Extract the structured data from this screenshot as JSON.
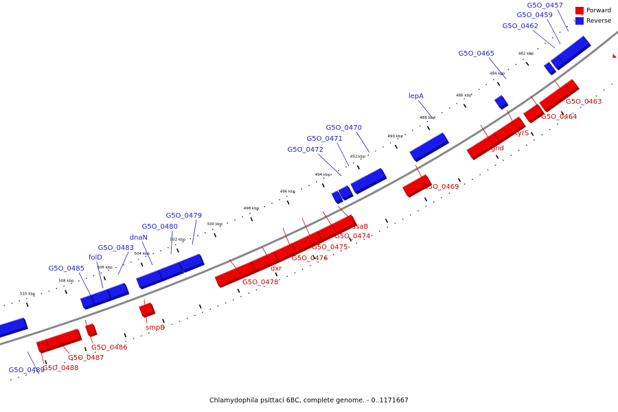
{
  "caption": "Chlamydophila psittaci 6BC, complete genome. - 0..1171667",
  "colors": {
    "forward": "#ee0000",
    "reverse": "#1a1aee",
    "forward_label": "#cc0000",
    "reverse_label": "#1a1acc",
    "backbone": "#888888"
  },
  "legend": {
    "forward": "Forward",
    "reverse": "Reverse"
  },
  "ticks": [
    "482 kbp",
    "484 kbp",
    "486 kbp",
    "488 kbp",
    "490 kbp",
    "492 kbp",
    "494 kbp",
    "496 kbp",
    "498 kbp",
    "500 kbp",
    "502 kbp",
    "504 kbp",
    "506 kbp",
    "508 kbp",
    "510 kbp"
  ],
  "genes": [
    {
      "name": "G5O_0457",
      "strand": "reverse"
    },
    {
      "name": "G5O_0459",
      "strand": "reverse"
    },
    {
      "name": "G5O_0462",
      "strand": "reverse"
    },
    {
      "name": "G5O_0465",
      "strand": "reverse"
    },
    {
      "name": "lepA",
      "strand": "reverse"
    },
    {
      "name": "G5O_0470",
      "strand": "reverse"
    },
    {
      "name": "G5O_0471",
      "strand": "reverse"
    },
    {
      "name": "G5O_0472",
      "strand": "reverse"
    },
    {
      "name": "G5O_0479",
      "strand": "reverse"
    },
    {
      "name": "G5O_0480",
      "strand": "reverse"
    },
    {
      "name": "dnaN",
      "strand": "reverse"
    },
    {
      "name": "G5O_0483",
      "strand": "reverse"
    },
    {
      "name": "folD",
      "strand": "reverse"
    },
    {
      "name": "G5O_0485",
      "strand": "reverse"
    },
    {
      "name": "G5O_0489",
      "strand": "reverse"
    },
    {
      "name": "G5O_0463",
      "strand": "forward"
    },
    {
      "name": "G5O_0464",
      "strand": "forward"
    },
    {
      "name": "tyrS",
      "strand": "forward"
    },
    {
      "name": "gnd",
      "strand": "forward"
    },
    {
      "name": "G5O_0469",
      "strand": "forward"
    },
    {
      "name": "ssaB",
      "strand": "forward"
    },
    {
      "name": "G5O_0474",
      "strand": "forward"
    },
    {
      "name": "G5O_0475",
      "strand": "forward"
    },
    {
      "name": "G5O_0476",
      "strand": "forward"
    },
    {
      "name": "dxr",
      "strand": "forward"
    },
    {
      "name": "G5O_0478",
      "strand": "forward"
    },
    {
      "name": "smpB",
      "strand": "forward"
    },
    {
      "name": "G5O_0486",
      "strand": "forward"
    },
    {
      "name": "G5O_0487",
      "strand": "forward"
    },
    {
      "name": "G5O_0488",
      "strand": "forward"
    }
  ]
}
